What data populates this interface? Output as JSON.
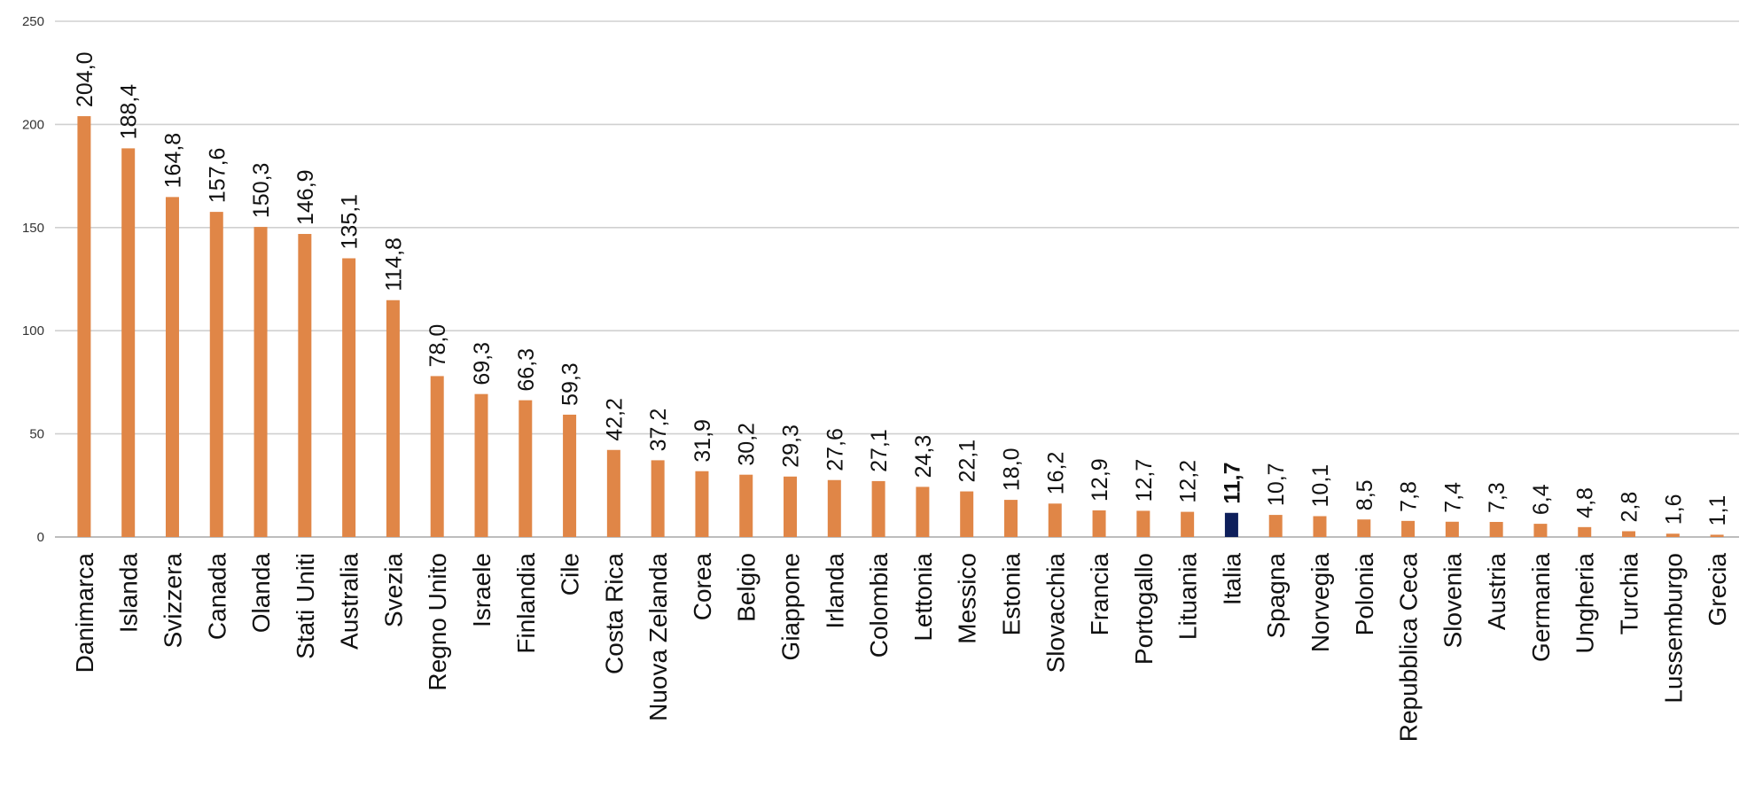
{
  "chart_data": {
    "type": "bar",
    "title": "",
    "xlabel": "",
    "ylabel": "",
    "ylim": [
      0,
      250
    ],
    "yticks": [
      "0",
      "50",
      "100",
      "150",
      "200",
      "250"
    ],
    "grid": true,
    "legend": "none",
    "categories": [
      "Danimarca",
      "Islanda",
      "Svizzera",
      "Canada",
      "Olanda",
      "Stati Uniti",
      "Australia",
      "Svezia",
      "Regno Unito",
      "Israele",
      "Finlandia",
      "Cile",
      "Costa Rica",
      "Nuova Zelanda",
      "Corea",
      "Belgio",
      "Giappone",
      "Irlanda",
      "Colombia",
      "Lettonia",
      "Messico",
      "Estonia",
      "Slovacchia",
      "Francia",
      "Portogallo",
      "Lituania",
      "Italia",
      "Spagna",
      "Norvegia",
      "Polonia",
      "Repubblica Ceca",
      "Slovenia",
      "Austria",
      "Germania",
      "Ungheria",
      "Turchia",
      "Lussemburgo",
      "Grecia"
    ],
    "values": [
      204.0,
      188.4,
      164.8,
      157.6,
      150.3,
      146.9,
      135.1,
      114.8,
      78.0,
      69.3,
      66.3,
      59.3,
      42.2,
      37.2,
      31.9,
      30.2,
      29.3,
      27.6,
      27.1,
      24.3,
      22.1,
      18.0,
      16.2,
      12.9,
      12.7,
      12.2,
      11.7,
      10.7,
      10.1,
      8.5,
      7.8,
      7.4,
      7.3,
      6.4,
      4.8,
      2.8,
      1.6,
      1.1
    ],
    "value_labels": [
      "204,0",
      "188,4",
      "164,8",
      "157,6",
      "150,3",
      "146,9",
      "135,1",
      "114,8",
      "78,0",
      "69,3",
      "66,3",
      "59,3",
      "42,2",
      "37,2",
      "31,9",
      "30,2",
      "29,3",
      "27,6",
      "27,1",
      "24,3",
      "22,1",
      "18,0",
      "16,2",
      "12,9",
      "12,7",
      "12,2",
      "11,7",
      "10,7",
      "10,1",
      "8,5",
      "7,8",
      "7,4",
      "7,3",
      "6,4",
      "4,8",
      "2,8",
      "1,6",
      "1,1"
    ],
    "highlight": "Italia",
    "colors": {
      "bar": "#E08647",
      "highlight": "#0E1F5B",
      "grid": "#D0D0D0",
      "axis": "#BDBDBD"
    }
  }
}
